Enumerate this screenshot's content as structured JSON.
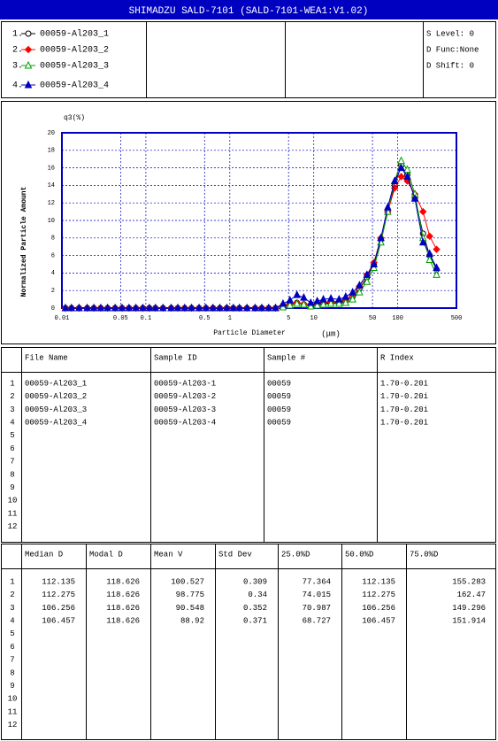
{
  "title": "SHIMADZU  SALD-7101  (SALD-7101-WEA1:V1.02)",
  "settings": [
    "S Level: 0",
    "D Func:None",
    "D Shift: 0"
  ],
  "chart_data": {
    "type": "line",
    "y_label": "Normalized Particle Amount",
    "y_title": "q3(%)",
    "x_label": "Particle Diameter",
    "x_unit": "(μm)",
    "xscale": "log",
    "grid": true,
    "xlim": [
      0.01,
      500
    ],
    "ylim": [
      0,
      20
    ],
    "xticks": [
      0.01,
      0.05,
      0.1,
      0.5,
      1,
      5,
      10,
      50,
      100,
      500
    ],
    "yticks": [
      0,
      2,
      4,
      6,
      8,
      10,
      12,
      14,
      16,
      18,
      20
    ],
    "x": [
      0.011,
      0.013,
      0.016,
      0.02,
      0.024,
      0.029,
      0.035,
      0.043,
      0.052,
      0.063,
      0.076,
      0.092,
      0.11,
      0.13,
      0.16,
      0.2,
      0.24,
      0.29,
      0.35,
      0.43,
      0.52,
      0.63,
      0.76,
      0.92,
      1.1,
      1.3,
      1.6,
      2,
      2.4,
      2.9,
      3.5,
      4.3,
      5.2,
      6.3,
      7.6,
      9.2,
      11,
      13,
      16,
      20,
      24,
      29,
      35,
      43,
      52,
      63,
      76,
      92,
      110,
      130,
      160,
      200,
      240,
      290
    ],
    "series": [
      {
        "label": "1.",
        "name": "00059-Al203_1",
        "color": "#000000",
        "marker": "circle",
        "values": [
          0,
          0,
          0,
          0,
          0,
          0,
          0,
          0,
          0,
          0,
          0,
          0,
          0,
          0,
          0,
          0,
          0,
          0,
          0,
          0,
          0,
          0,
          0,
          0,
          0,
          0,
          0,
          0,
          0,
          0,
          0,
          0.3,
          0.5,
          0.6,
          0.4,
          0.3,
          0.4,
          0.5,
          0.6,
          0.6,
          0.8,
          1.3,
          2.2,
          3.5,
          5,
          7.8,
          11,
          14,
          16.3,
          15.2,
          12.5,
          8.5,
          6,
          4.4
        ]
      },
      {
        "label": "2.",
        "name": "00059-Al203_2",
        "color": "#ff0000",
        "marker": "diamond",
        "values": [
          0,
          0,
          0,
          0,
          0,
          0,
          0,
          0,
          0,
          0,
          0,
          0,
          0,
          0,
          0,
          0,
          0,
          0,
          0,
          0,
          0,
          0,
          0,
          0,
          0,
          0,
          0,
          0,
          0,
          0,
          0,
          0.2,
          0.4,
          0.6,
          0.5,
          0.3,
          0.5,
          0.6,
          0.7,
          0.8,
          1,
          1.5,
          2.5,
          3.8,
          5.2,
          8,
          11,
          13.7,
          15,
          14.5,
          13,
          11,
          8.2,
          6.7
        ]
      },
      {
        "label": "3.",
        "name": "00059-Al203_3",
        "color": "#00a000",
        "marker": "triangle-open",
        "values": [
          0,
          0,
          0,
          0,
          0,
          0,
          0,
          0,
          0,
          0,
          0,
          0,
          0,
          0,
          0,
          0,
          0,
          0,
          0,
          0,
          0,
          0,
          0,
          0,
          0,
          0,
          0,
          0,
          0,
          0,
          0,
          0.1,
          0.3,
          0.5,
          0.4,
          0.2,
          0.3,
          0.4,
          0.5,
          0.5,
          0.6,
          1,
          1.8,
          3,
          4.6,
          7.5,
          11,
          14.5,
          16.8,
          15.8,
          13,
          8,
          5.5,
          3.8
        ]
      },
      {
        "label": "4.",
        "name": "00059-Al203_4",
        "color": "#0000c0",
        "marker": "triangle",
        "values": [
          0,
          0,
          0,
          0,
          0,
          0,
          0,
          0,
          0,
          0,
          0,
          0,
          0,
          0,
          0,
          0,
          0,
          0,
          0,
          0,
          0,
          0,
          0,
          0,
          0,
          0,
          0,
          0,
          0,
          0,
          0,
          0.5,
          0.9,
          1.5,
          1.2,
          0.6,
          0.8,
          1,
          1.1,
          1,
          1.3,
          1.8,
          2.6,
          3.8,
          5,
          8,
          11.5,
          14.5,
          16,
          15,
          12.5,
          7.5,
          6.2,
          4.6
        ]
      }
    ]
  },
  "table1": {
    "columns": [
      "File Name",
      "Sample ID",
      "Sample #",
      "R Index"
    ],
    "row_numbers": [
      1,
      2,
      3,
      4,
      5,
      6,
      7,
      8,
      9,
      10,
      11,
      12
    ],
    "rows": [
      [
        "00059-Al203_1",
        "00059-Al203-1",
        "00059",
        "1.70-0.20i"
      ],
      [
        "00059-Al203_2",
        "00059-Al203-2",
        "00059",
        "1.70-0.20i"
      ],
      [
        "00059-Al203_3",
        "00059-Al203-3",
        "00059",
        "1.70-0.20i"
      ],
      [
        "00059-Al203_4",
        "00059-Al203-4",
        "00059",
        "1.70-0.20i"
      ]
    ]
  },
  "table2": {
    "columns": [
      "Median D",
      "Modal D",
      "Mean V",
      "Std Dev",
      "25.0%D",
      "50.0%D",
      "75.0%D"
    ],
    "row_numbers": [
      1,
      2,
      3,
      4,
      5,
      6,
      7,
      8,
      9,
      10,
      11,
      12
    ],
    "rows": [
      [
        112.135,
        118.626,
        100.527,
        0.309,
        77.364,
        112.135,
        155.283
      ],
      [
        112.275,
        118.626,
        98.775,
        0.34,
        74.015,
        112.275,
        162.47
      ],
      [
        106.256,
        118.626,
        90.548,
        0.352,
        70.987,
        106.256,
        149.296
      ],
      [
        106.457,
        118.626,
        88.92,
        0.371,
        68.727,
        106.457,
        151.914
      ]
    ]
  }
}
